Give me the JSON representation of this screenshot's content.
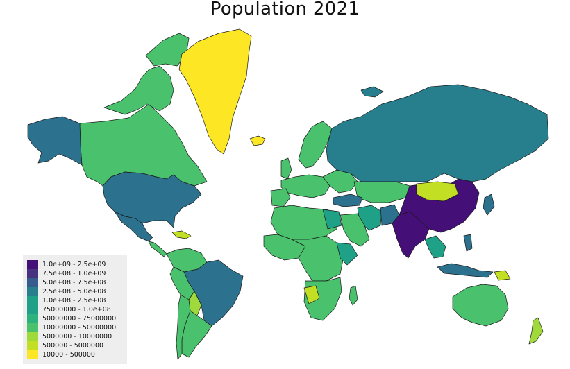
{
  "map": {
    "title": "Population 2021",
    "colors": {
      "c1": "#440f76",
      "c2": "#472b7a",
      "c3": "#3b518b",
      "c4": "#2c718e",
      "c5": "#21908d",
      "c6": "#27ad81",
      "c7": "#5cc863",
      "c8": "#52c569",
      "c9": "#8fd744",
      "c10": "#c0df25",
      "c11": "#fde725"
    },
    "legend": [
      {
        "label": "1.0e+09 - 2.5e+09",
        "color": "#440f76"
      },
      {
        "label": "7.5e+08 - 1.0e+09",
        "color": "#46327e"
      },
      {
        "label": "5.0e+08 - 7.5e+08",
        "color": "#365c8d"
      },
      {
        "label": "2.5e+08 - 5.0e+08",
        "color": "#277f8e"
      },
      {
        "label": "1.0e+08 - 2.5e+08",
        "color": "#1fa187"
      },
      {
        "label": "75000000 - 1.0e+08",
        "color": "#1fa187"
      },
      {
        "label": "50000000 - 75000000",
        "color": "#2db27d"
      },
      {
        "label": "10000000 - 50000000",
        "color": "#4ac16d"
      },
      {
        "label": "5000000 - 10000000",
        "color": "#9fda3a"
      },
      {
        "label": "500000 - 5000000",
        "color": "#c2df23"
      },
      {
        "label": "10000 - 500000",
        "color": "#fde725"
      }
    ]
  }
}
